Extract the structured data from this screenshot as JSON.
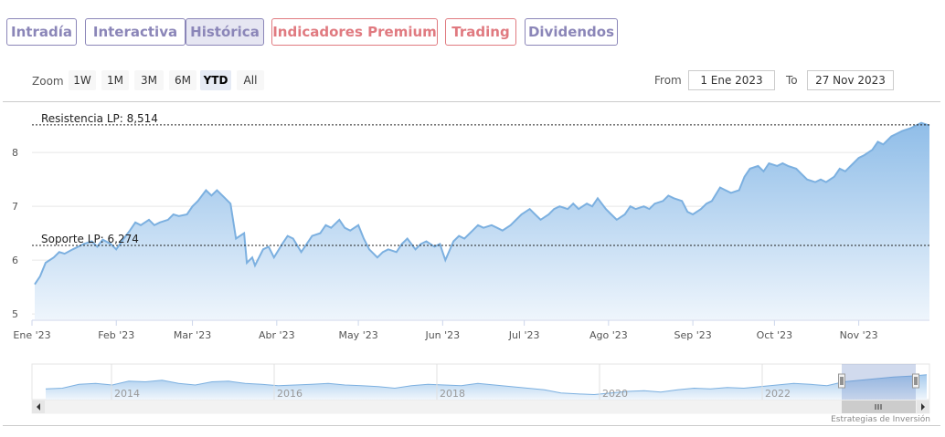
{
  "tabs": [
    {
      "label": "Intradía",
      "style": "purple",
      "active": false
    },
    {
      "label": "Interactiva",
      "style": "purple",
      "active": false
    },
    {
      "label": "Histórica",
      "style": "purple",
      "active": true
    },
    {
      "label": "Indicadores Premium",
      "style": "red",
      "active": false
    },
    {
      "label": "Trading",
      "style": "red",
      "active": false
    },
    {
      "label": "Dividendos",
      "style": "purple",
      "active": false
    }
  ],
  "range_selector": {
    "zoom_label": "Zoom",
    "buttons": [
      "1W",
      "1M",
      "3M",
      "6M",
      "YTD",
      "All"
    ],
    "selected": "YTD",
    "from_label": "From",
    "from_value": "1 Ene 2023",
    "to_label": "To",
    "to_value": "27 Nov 2023"
  },
  "credit": "Estrategias de Inversión",
  "colors": {
    "line": "#7cb0e0",
    "fill_top": "#8fbde8",
    "fill_bottom": "#eef5fc",
    "purple": "#8b86b8",
    "red": "#e07a80"
  },
  "chart_data": {
    "type": "area",
    "x_ticks": [
      "Ene '23",
      "Feb '23",
      "Mar '23",
      "Abr '23",
      "May '23",
      "Jun '23",
      "Jul '23",
      "Ago '23",
      "Sep '23",
      "Oct '23",
      "Nov '23"
    ],
    "y_ticks": [
      5,
      6,
      7,
      8
    ],
    "ylim": [
      4.9,
      8.8
    ],
    "xlim": [
      "2023-01-01",
      "2023-11-27"
    ],
    "annotations": [
      {
        "label": "Resistencia LP: 8,514",
        "value": 8.514
      },
      {
        "label": "Soporte LP: 6,274",
        "value": 6.274
      }
    ],
    "points": [
      [
        "2023-01-02",
        5.55
      ],
      [
        "2023-01-04",
        5.7
      ],
      [
        "2023-01-06",
        5.95
      ],
      [
        "2023-01-09",
        6.05
      ],
      [
        "2023-01-11",
        6.15
      ],
      [
        "2023-01-13",
        6.12
      ],
      [
        "2023-01-16",
        6.2
      ],
      [
        "2023-01-18",
        6.25
      ],
      [
        "2023-01-20",
        6.3
      ],
      [
        "2023-01-23",
        6.35
      ],
      [
        "2023-01-25",
        6.25
      ],
      [
        "2023-01-27",
        6.38
      ],
      [
        "2023-01-30",
        6.3
      ],
      [
        "2023-02-01",
        6.2
      ],
      [
        "2023-02-03",
        6.35
      ],
      [
        "2023-02-06",
        6.55
      ],
      [
        "2023-02-08",
        6.7
      ],
      [
        "2023-02-10",
        6.65
      ],
      [
        "2023-02-13",
        6.75
      ],
      [
        "2023-02-15",
        6.65
      ],
      [
        "2023-02-17",
        6.7
      ],
      [
        "2023-02-20",
        6.75
      ],
      [
        "2023-02-22",
        6.85
      ],
      [
        "2023-02-24",
        6.82
      ],
      [
        "2023-02-27",
        6.85
      ],
      [
        "2023-03-01",
        7.0
      ],
      [
        "2023-03-03",
        7.1
      ],
      [
        "2023-03-06",
        7.3
      ],
      [
        "2023-03-08",
        7.2
      ],
      [
        "2023-03-10",
        7.3
      ],
      [
        "2023-03-13",
        7.15
      ],
      [
        "2023-03-15",
        7.05
      ],
      [
        "2023-03-17",
        6.4
      ],
      [
        "2023-03-20",
        6.5
      ],
      [
        "2023-03-21",
        5.95
      ],
      [
        "2023-03-23",
        6.05
      ],
      [
        "2023-03-24",
        5.9
      ],
      [
        "2023-03-27",
        6.2
      ],
      [
        "2023-03-29",
        6.25
      ],
      [
        "2023-03-31",
        6.05
      ],
      [
        "2023-04-03",
        6.3
      ],
      [
        "2023-04-05",
        6.45
      ],
      [
        "2023-04-07",
        6.4
      ],
      [
        "2023-04-10",
        6.15
      ],
      [
        "2023-04-12",
        6.3
      ],
      [
        "2023-04-14",
        6.45
      ],
      [
        "2023-04-17",
        6.5
      ],
      [
        "2023-04-19",
        6.65
      ],
      [
        "2023-04-21",
        6.6
      ],
      [
        "2023-04-24",
        6.75
      ],
      [
        "2023-04-26",
        6.6
      ],
      [
        "2023-04-28",
        6.55
      ],
      [
        "2023-05-01",
        6.65
      ],
      [
        "2023-05-03",
        6.4
      ],
      [
        "2023-05-05",
        6.2
      ],
      [
        "2023-05-08",
        6.05
      ],
      [
        "2023-05-10",
        6.15
      ],
      [
        "2023-05-12",
        6.2
      ],
      [
        "2023-05-15",
        6.15
      ],
      [
        "2023-05-17",
        6.3
      ],
      [
        "2023-05-19",
        6.4
      ],
      [
        "2023-05-22",
        6.2
      ],
      [
        "2023-05-24",
        6.3
      ],
      [
        "2023-05-26",
        6.35
      ],
      [
        "2023-05-29",
        6.25
      ],
      [
        "2023-05-31",
        6.3
      ],
      [
        "2023-06-01",
        6.15
      ],
      [
        "2023-06-02",
        6.0
      ],
      [
        "2023-06-05",
        6.35
      ],
      [
        "2023-06-07",
        6.45
      ],
      [
        "2023-06-09",
        6.4
      ],
      [
        "2023-06-12",
        6.55
      ],
      [
        "2023-06-14",
        6.65
      ],
      [
        "2023-06-16",
        6.6
      ],
      [
        "2023-06-19",
        6.65
      ],
      [
        "2023-06-21",
        6.6
      ],
      [
        "2023-06-23",
        6.55
      ],
      [
        "2023-06-26",
        6.65
      ],
      [
        "2023-06-28",
        6.75
      ],
      [
        "2023-06-30",
        6.85
      ],
      [
        "2023-07-03",
        6.95
      ],
      [
        "2023-07-05",
        6.85
      ],
      [
        "2023-07-07",
        6.75
      ],
      [
        "2023-07-10",
        6.85
      ],
      [
        "2023-07-12",
        6.95
      ],
      [
        "2023-07-14",
        7.0
      ],
      [
        "2023-07-17",
        6.95
      ],
      [
        "2023-07-19",
        7.05
      ],
      [
        "2023-07-21",
        6.95
      ],
      [
        "2023-07-24",
        7.05
      ],
      [
        "2023-07-26",
        7.0
      ],
      [
        "2023-07-28",
        7.15
      ],
      [
        "2023-07-31",
        6.95
      ],
      [
        "2023-08-02",
        6.85
      ],
      [
        "2023-08-04",
        6.75
      ],
      [
        "2023-08-07",
        6.85
      ],
      [
        "2023-08-09",
        7.0
      ],
      [
        "2023-08-11",
        6.95
      ],
      [
        "2023-08-14",
        7.0
      ],
      [
        "2023-08-16",
        6.95
      ],
      [
        "2023-08-18",
        7.05
      ],
      [
        "2023-08-21",
        7.1
      ],
      [
        "2023-08-23",
        7.2
      ],
      [
        "2023-08-25",
        7.15
      ],
      [
        "2023-08-28",
        7.1
      ],
      [
        "2023-08-30",
        6.9
      ],
      [
        "2023-09-01",
        6.85
      ],
      [
        "2023-09-04",
        6.95
      ],
      [
        "2023-09-06",
        7.05
      ],
      [
        "2023-09-08",
        7.1
      ],
      [
        "2023-09-11",
        7.35
      ],
      [
        "2023-09-13",
        7.3
      ],
      [
        "2023-09-15",
        7.25
      ],
      [
        "2023-09-18",
        7.3
      ],
      [
        "2023-09-20",
        7.55
      ],
      [
        "2023-09-22",
        7.7
      ],
      [
        "2023-09-25",
        7.75
      ],
      [
        "2023-09-27",
        7.65
      ],
      [
        "2023-09-29",
        7.8
      ],
      [
        "2023-10-02",
        7.75
      ],
      [
        "2023-10-04",
        7.8
      ],
      [
        "2023-10-06",
        7.75
      ],
      [
        "2023-10-09",
        7.7
      ],
      [
        "2023-10-11",
        7.6
      ],
      [
        "2023-10-13",
        7.5
      ],
      [
        "2023-10-16",
        7.45
      ],
      [
        "2023-10-18",
        7.5
      ],
      [
        "2023-10-20",
        7.45
      ],
      [
        "2023-10-23",
        7.55
      ],
      [
        "2023-10-25",
        7.7
      ],
      [
        "2023-10-27",
        7.65
      ],
      [
        "2023-10-30",
        7.8
      ],
      [
        "2023-11-01",
        7.9
      ],
      [
        "2023-11-03",
        7.95
      ],
      [
        "2023-11-06",
        8.05
      ],
      [
        "2023-11-08",
        8.2
      ],
      [
        "2023-11-10",
        8.15
      ],
      [
        "2023-11-13",
        8.3
      ],
      [
        "2023-11-15",
        8.35
      ],
      [
        "2023-11-17",
        8.4
      ],
      [
        "2023-11-20",
        8.45
      ],
      [
        "2023-11-22",
        8.5
      ],
      [
        "2023-11-24",
        8.55
      ],
      [
        "2023-11-27",
        8.5
      ]
    ]
  },
  "navigator": {
    "year_ticks": [
      "2014",
      "2016",
      "2018",
      "2020",
      "2022"
    ]
  }
}
